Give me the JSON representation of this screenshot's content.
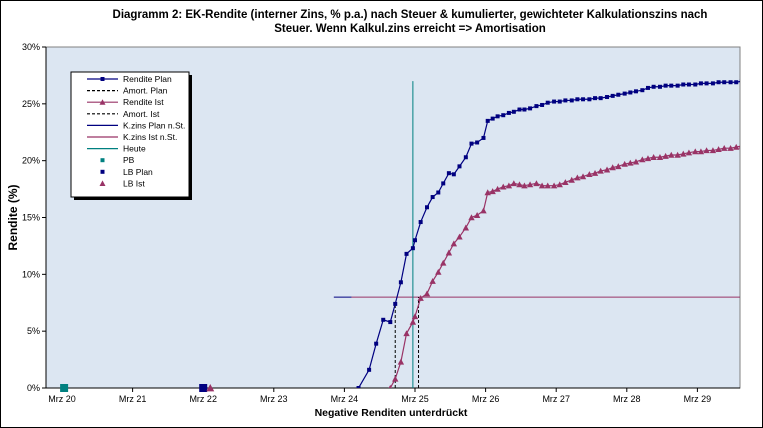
{
  "chart_data": {
    "type": "line",
    "title_line1": "Diagramm 2: EK-Rendite  (interner Zins, % p.a.) nach  Steuer & kumulierter, gewichteter Kalkulationszins nach",
    "title_line2": "Steuer. Wenn Kalkul.zins erreicht => Amortisation",
    "ylabel": "Rendite (%)",
    "xlabel": "Negative Renditen unterdrückt",
    "ylim": [
      0,
      30
    ],
    "yticks": [
      "0%",
      "5%",
      "10%",
      "15%",
      "20%",
      "25%",
      "30%"
    ],
    "xlim": [
      0,
      10
    ],
    "xticks": [
      "Mrz 20",
      "Mrz 21",
      "Mrz 22",
      "Mrz 23",
      "Mrz 24",
      "Mrz 25",
      "Mrz 26",
      "Mrz 27",
      "Mrz 28",
      "Mrz 29"
    ],
    "grid": false,
    "legend_position": "top-left",
    "colors": {
      "plot_bg": "#dce6f2",
      "plan": "#000080",
      "ist": "#993366",
      "heute": "#008080",
      "pb": "#008080"
    },
    "series": [
      {
        "name": "Rendite Plan",
        "style": "line-square",
        "points": [
          [
            4.2,
            0
          ],
          [
            4.35,
            1.6
          ],
          [
            4.45,
            3.9
          ],
          [
            4.55,
            6.0
          ],
          [
            4.65,
            5.8
          ],
          [
            4.72,
            7.4
          ],
          [
            4.8,
            9.3
          ],
          [
            4.88,
            11.8
          ],
          [
            4.97,
            12.3
          ],
          [
            5.0,
            13.0
          ],
          [
            5.08,
            14.6
          ],
          [
            5.17,
            15.9
          ],
          [
            5.25,
            16.8
          ],
          [
            5.33,
            17.2
          ],
          [
            5.4,
            18.0
          ],
          [
            5.48,
            18.9
          ],
          [
            5.55,
            18.8
          ],
          [
            5.63,
            19.5
          ],
          [
            5.72,
            20.3
          ],
          [
            5.8,
            21.5
          ],
          [
            5.88,
            21.6
          ],
          [
            5.97,
            22.0
          ],
          [
            6.03,
            23.5
          ],
          [
            6.1,
            23.7
          ],
          [
            6.17,
            23.9
          ],
          [
            6.25,
            24.0
          ],
          [
            6.33,
            24.2
          ],
          [
            6.4,
            24.3
          ],
          [
            6.48,
            24.5
          ],
          [
            6.55,
            24.5
          ],
          [
            6.63,
            24.6
          ],
          [
            6.72,
            24.8
          ],
          [
            6.8,
            24.9
          ],
          [
            6.88,
            25.1
          ],
          [
            6.97,
            25.2
          ],
          [
            7.05,
            25.2
          ],
          [
            7.13,
            25.3
          ],
          [
            7.22,
            25.3
          ],
          [
            7.3,
            25.4
          ],
          [
            7.38,
            25.4
          ],
          [
            7.47,
            25.4
          ],
          [
            7.55,
            25.5
          ],
          [
            7.63,
            25.5
          ],
          [
            7.72,
            25.6
          ],
          [
            7.8,
            25.7
          ],
          [
            7.88,
            25.8
          ],
          [
            7.97,
            25.9
          ],
          [
            8.05,
            26.0
          ],
          [
            8.13,
            26.1
          ],
          [
            8.22,
            26.2
          ],
          [
            8.3,
            26.4
          ],
          [
            8.38,
            26.5
          ],
          [
            8.47,
            26.5
          ],
          [
            8.55,
            26.6
          ],
          [
            8.63,
            26.6
          ],
          [
            8.72,
            26.6
          ],
          [
            8.8,
            26.7
          ],
          [
            8.88,
            26.7
          ],
          [
            8.97,
            26.7
          ],
          [
            9.05,
            26.8
          ],
          [
            9.13,
            26.8
          ],
          [
            9.22,
            26.8
          ],
          [
            9.3,
            26.9
          ],
          [
            9.38,
            26.9
          ],
          [
            9.47,
            26.9
          ],
          [
            9.55,
            26.9
          ],
          [
            9.63,
            27.0
          ],
          [
            9.72,
            27.0
          ],
          [
            9.8,
            27.0
          ],
          [
            9.88,
            27.0
          ],
          [
            9.97,
            27.0
          ],
          [
            10.03,
            27.1
          ]
        ]
      },
      {
        "name": "Amort. Plan",
        "style": "dashed-vertical",
        "x": 4.72,
        "y_top": 7.4
      },
      {
        "name": "Rendite Ist",
        "style": "line-triangle",
        "points": [
          [
            4.65,
            0
          ],
          [
            4.72,
            0.8
          ],
          [
            4.8,
            2.3
          ],
          [
            4.88,
            4.8
          ],
          [
            4.97,
            5.8
          ],
          [
            5.0,
            6.3
          ],
          [
            5.08,
            7.9
          ],
          [
            5.17,
            8.3
          ],
          [
            5.25,
            9.4
          ],
          [
            5.33,
            10.2
          ],
          [
            5.4,
            11.0
          ],
          [
            5.48,
            11.9
          ],
          [
            5.55,
            12.7
          ],
          [
            5.63,
            13.3
          ],
          [
            5.72,
            14.1
          ],
          [
            5.8,
            15.0
          ],
          [
            5.88,
            15.2
          ],
          [
            5.97,
            15.6
          ],
          [
            6.03,
            17.2
          ],
          [
            6.1,
            17.3
          ],
          [
            6.17,
            17.5
          ],
          [
            6.25,
            17.7
          ],
          [
            6.33,
            17.8
          ],
          [
            6.4,
            18.0
          ],
          [
            6.48,
            17.9
          ],
          [
            6.55,
            17.8
          ],
          [
            6.63,
            17.9
          ],
          [
            6.72,
            18.0
          ],
          [
            6.8,
            17.8
          ],
          [
            6.88,
            17.8
          ],
          [
            6.97,
            17.8
          ],
          [
            7.05,
            17.9
          ],
          [
            7.13,
            18.1
          ],
          [
            7.22,
            18.3
          ],
          [
            7.3,
            18.5
          ],
          [
            7.38,
            18.6
          ],
          [
            7.47,
            18.8
          ],
          [
            7.55,
            18.9
          ],
          [
            7.63,
            19.1
          ],
          [
            7.72,
            19.2
          ],
          [
            7.8,
            19.4
          ],
          [
            7.88,
            19.5
          ],
          [
            7.97,
            19.7
          ],
          [
            8.05,
            19.8
          ],
          [
            8.13,
            19.9
          ],
          [
            8.22,
            20.1
          ],
          [
            8.3,
            20.2
          ],
          [
            8.38,
            20.3
          ],
          [
            8.47,
            20.3
          ],
          [
            8.55,
            20.4
          ],
          [
            8.63,
            20.5
          ],
          [
            8.72,
            20.5
          ],
          [
            8.8,
            20.6
          ],
          [
            8.88,
            20.7
          ],
          [
            8.97,
            20.8
          ],
          [
            9.05,
            20.8
          ],
          [
            9.13,
            20.9
          ],
          [
            9.22,
            20.9
          ],
          [
            9.3,
            21.0
          ],
          [
            9.38,
            21.1
          ],
          [
            9.47,
            21.1
          ],
          [
            9.55,
            21.2
          ],
          [
            9.63,
            21.3
          ],
          [
            9.72,
            21.4
          ],
          [
            9.8,
            21.5
          ],
          [
            9.88,
            21.5
          ],
          [
            9.97,
            21.6
          ],
          [
            10.03,
            21.7
          ]
        ]
      },
      {
        "name": "Amort. Ist",
        "style": "dashed-vertical",
        "x": 5.05,
        "y_top": 8.0
      },
      {
        "name": "K.zins  Plan n.St.",
        "style": "line",
        "points": [
          [
            3.85,
            8.0
          ],
          [
            4.1,
            8.0
          ]
        ]
      },
      {
        "name": "K.zins  Ist n.St.",
        "style": "line",
        "points": [
          [
            4.1,
            8.0
          ],
          [
            10.03,
            8.0
          ]
        ]
      },
      {
        "name": "Heute",
        "style": "vertical-line",
        "x": 4.97,
        "y_top": 27.0
      },
      {
        "name": "PB",
        "style": "square-marker",
        "points": [
          [
            0.03,
            0
          ]
        ]
      },
      {
        "name": "LB Plan",
        "style": "square-marker",
        "points": [
          [
            2.0,
            0
          ]
        ]
      },
      {
        "name": "LB Ist",
        "style": "triangle-marker",
        "points": [
          [
            2.1,
            0
          ]
        ]
      }
    ]
  }
}
